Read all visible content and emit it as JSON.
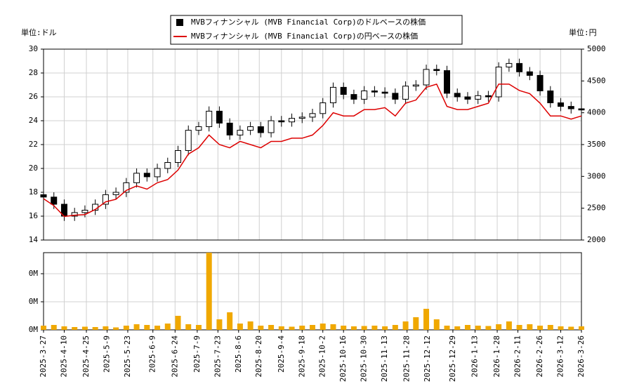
{
  "chart_data": [
    {
      "type": "candlestick",
      "y_unit": "単位:ドル",
      "y2_unit": "単位:円",
      "grid": true,
      "xlim": [
        "2025-3-27",
        "2026-3-26"
      ],
      "xticks": [
        "2025-3-27",
        "2025-4-10",
        "2025-4-25",
        "2025-5-9",
        "2025-5-23",
        "2025-6-9",
        "2025-6-24",
        "2025-7-9",
        "2025-7-23",
        "2025-8-6",
        "2025-8-20",
        "2025-9-4",
        "2025-9-18",
        "2025-10-2",
        "2025-10-16",
        "2025-10-30",
        "2025-11-13",
        "2025-11-28",
        "2025-12-12",
        "2025-12-29",
        "2026-1-13",
        "2026-1-28",
        "2026-2-11",
        "2026-2-26",
        "2026-3-12",
        "2026-3-26"
      ],
      "ylim": [
        14,
        30
      ],
      "yticks": [
        14,
        16,
        18,
        20,
        22,
        24,
        26,
        28,
        30
      ],
      "y2lim": [
        2000,
        5000
      ],
      "y2ticks": [
        2000,
        2500,
        3000,
        3500,
        4000,
        4500,
        5000
      ],
      "x": [
        "2025-3-27",
        "2025-4-3",
        "2025-4-10",
        "2025-4-17",
        "2025-4-24",
        "2025-5-1",
        "2025-5-8",
        "2025-5-15",
        "2025-5-22",
        "2025-5-29",
        "2025-6-5",
        "2025-6-12",
        "2025-6-19",
        "2025-6-26",
        "2025-7-3",
        "2025-7-10",
        "2025-7-17",
        "2025-7-24",
        "2025-7-31",
        "2025-8-7",
        "2025-8-14",
        "2025-8-21",
        "2025-8-28",
        "2025-9-4",
        "2025-9-11",
        "2025-9-18",
        "2025-9-25",
        "2025-10-2",
        "2025-10-9",
        "2025-10-16",
        "2025-10-23",
        "2025-10-30",
        "2025-11-6",
        "2025-11-13",
        "2025-11-20",
        "2025-11-27",
        "2025-12-4",
        "2025-12-11",
        "2025-12-18",
        "2025-12-25",
        "2026-1-1",
        "2026-1-8",
        "2026-1-15",
        "2026-1-22",
        "2026-1-29",
        "2026-2-5",
        "2026-2-12",
        "2026-2-19",
        "2026-2-26",
        "2026-3-5",
        "2026-3-12",
        "2026-3-19",
        "2026-3-26"
      ],
      "series": [
        {
          "name": "MVBフィナンシャル (MVB Financial Corp)のドルベースの株価",
          "color": "#000000",
          "open": [
            17.8,
            17.6,
            17.0,
            16.0,
            16.3,
            16.5,
            17.0,
            17.8,
            18.0,
            18.8,
            19.6,
            19.3,
            20.0,
            20.5,
            21.5,
            23.2,
            23.5,
            24.8,
            23.8,
            22.8,
            23.2,
            23.5,
            23.0,
            24.0,
            23.9,
            24.2,
            24.3,
            24.6,
            25.5,
            26.8,
            26.2,
            25.8,
            26.5,
            26.4,
            26.3,
            25.8,
            26.9,
            27.0,
            28.3,
            28.2,
            26.3,
            26.0,
            25.8,
            26.1,
            26.0,
            28.5,
            28.8,
            28.1,
            27.8,
            26.5,
            25.5,
            25.2,
            25.0
          ],
          "high": [
            18.2,
            18.0,
            17.4,
            16.7,
            16.9,
            17.4,
            18.2,
            18.4,
            19.2,
            20.0,
            20.0,
            20.4,
            20.9,
            21.9,
            23.6,
            23.9,
            25.2,
            25.2,
            24.2,
            23.6,
            23.9,
            23.9,
            24.4,
            24.4,
            24.6,
            24.7,
            25.0,
            25.9,
            27.2,
            27.2,
            26.6,
            26.9,
            26.9,
            26.8,
            26.7,
            27.3,
            27.4,
            28.7,
            28.7,
            28.6,
            26.7,
            26.4,
            26.5,
            26.5,
            28.9,
            29.2,
            29.2,
            28.5,
            28.2,
            26.9,
            25.9,
            25.6,
            25.4
          ],
          "low": [
            17.2,
            16.6,
            15.6,
            15.6,
            15.9,
            16.1,
            16.6,
            17.4,
            17.6,
            18.4,
            18.9,
            18.9,
            19.6,
            20.1,
            21.1,
            22.8,
            23.1,
            23.4,
            22.4,
            22.4,
            22.8,
            22.6,
            22.6,
            23.5,
            23.5,
            23.8,
            23.9,
            24.2,
            25.1,
            25.8,
            25.4,
            25.4,
            26.0,
            25.9,
            25.4,
            25.4,
            26.5,
            26.6,
            27.8,
            25.9,
            25.6,
            25.4,
            25.4,
            25.6,
            25.6,
            28.1,
            27.7,
            27.4,
            26.1,
            25.1,
            24.8,
            24.6,
            24.5
          ],
          "close": [
            17.6,
            17.0,
            16.0,
            16.3,
            16.5,
            17.0,
            17.8,
            18.0,
            18.8,
            19.6,
            19.3,
            20.0,
            20.5,
            21.5,
            23.2,
            23.5,
            24.8,
            23.8,
            22.8,
            23.2,
            23.5,
            23.0,
            24.0,
            23.9,
            24.2,
            24.3,
            24.6,
            25.5,
            26.8,
            26.2,
            25.8,
            26.5,
            26.4,
            26.3,
            25.8,
            26.9,
            27.0,
            28.3,
            28.2,
            26.3,
            26.0,
            25.8,
            26.1,
            26.0,
            28.5,
            28.8,
            28.1,
            27.8,
            26.5,
            25.5,
            25.2,
            25.0,
            24.9
          ]
        },
        {
          "name": "MVBフィナンシャル (MVB Financial Corp)の円ベースの株価",
          "color": "#dd0000",
          "axis": "y2",
          "values": [
            2650,
            2540,
            2370,
            2390,
            2400,
            2480,
            2600,
            2640,
            2780,
            2850,
            2800,
            2900,
            2950,
            3100,
            3350,
            3450,
            3650,
            3500,
            3450,
            3550,
            3500,
            3450,
            3550,
            3550,
            3600,
            3600,
            3650,
            3800,
            4000,
            3950,
            3950,
            4050,
            4050,
            4080,
            3950,
            4150,
            4200,
            4400,
            4450,
            4100,
            4050,
            4050,
            4100,
            4150,
            4450,
            4450,
            4350,
            4300,
            4150,
            3950,
            3950,
            3900,
            3950
          ]
        }
      ]
    },
    {
      "type": "bar",
      "color": "#f0a800",
      "grid": true,
      "ylim": [
        0,
        1100000
      ],
      "yticks": [
        {
          "value": 0,
          "label": "0M"
        },
        {
          "value": 400000,
          "label": "0M"
        },
        {
          "value": 800000,
          "label": "0M"
        }
      ],
      "values": [
        60000,
        70000,
        50000,
        40000,
        45000,
        40000,
        50000,
        35000,
        60000,
        80000,
        70000,
        60000,
        90000,
        200000,
        80000,
        70000,
        1100000,
        150000,
        250000,
        90000,
        120000,
        60000,
        70000,
        50000,
        45000,
        60000,
        70000,
        90000,
        80000,
        60000,
        50000,
        55000,
        60000,
        50000,
        70000,
        120000,
        180000,
        300000,
        150000,
        60000,
        50000,
        70000,
        60000,
        55000,
        80000,
        120000,
        70000,
        80000,
        60000,
        70000,
        50000,
        45000,
        50000
      ]
    }
  ]
}
